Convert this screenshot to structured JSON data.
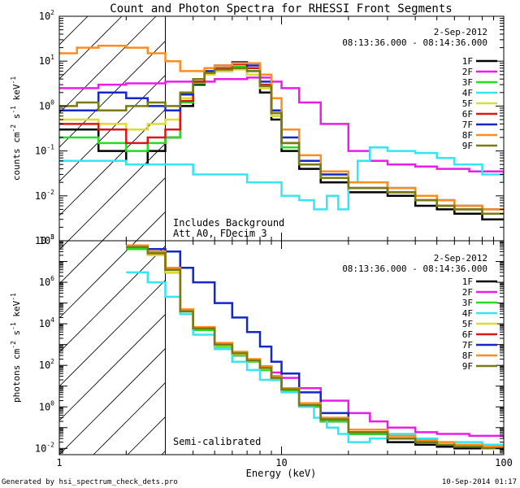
{
  "title": "Count and Photon Spectra for RHESSI Front Segments",
  "footer": {
    "generated_by": "Generated by hsi_spectrum_check_dets.pro",
    "timestamp": "10-Sep-2014 01:17"
  },
  "colors": {
    "1F": "#000000",
    "2F": "#e81ee8",
    "3F": "#22dd22",
    "4F": "#33e6f2",
    "5F": "#dcdc32",
    "6F": "#d81818",
    "7F": "#1428c8",
    "8F": "#ff8c1e",
    "9F": "#7a7a14"
  },
  "chart_data": [
    {
      "type": "line",
      "title": "Count and Photon Spectra for RHESSI Front Segments",
      "date": "2-Sep-2012",
      "time_range": "08:13:36.000 - 08:14:36.000",
      "annotations": [
        "Includes Background",
        "Att A0, FDecim 3"
      ],
      "xlabel": "",
      "ylabel": "counts cm-2 s-1 keV-1",
      "xscale": "log",
      "yscale": "log",
      "xlim": [
        1,
        100
      ],
      "ylim": [
        0.001,
        100
      ],
      "x_ticks": [
        1,
        10,
        100
      ],
      "x_tick_labels": [
        "",
        "",
        ""
      ],
      "y_ticks": [
        0.001,
        0.01,
        0.1,
        1,
        10,
        100
      ],
      "y_tick_labels": [
        "10^-3",
        "10^-2",
        "10^-1",
        "10^0",
        "10^1",
        "10^2"
      ],
      "ylabel_parts": [
        {
          "t": "counts cm"
        },
        {
          "t": "-2",
          "sup": true
        },
        {
          "t": " s"
        },
        {
          "t": "-1",
          "sup": true
        },
        {
          "t": " keV"
        },
        {
          "t": "-1",
          "sup": true
        }
      ],
      "series": [
        {
          "name": "1F",
          "x": [
            1,
            1.2,
            1.5,
            2,
            2.5,
            3,
            3.5,
            4,
            4.5,
            5,
            6,
            7,
            8,
            9,
            10,
            12,
            15,
            20,
            30,
            40,
            50,
            60,
            80,
            100
          ],
          "y": [
            0.3,
            0.3,
            0.1,
            0.05,
            0.1,
            0.2,
            1,
            3,
            5,
            6,
            7,
            5,
            2,
            0.5,
            0.1,
            0.04,
            0.02,
            0.012,
            0.01,
            0.006,
            0.005,
            0.004,
            0.003,
            0.003
          ]
        },
        {
          "name": "2F",
          "x": [
            1,
            1.5,
            2,
            3,
            5,
            7,
            9,
            10,
            12,
            15,
            20,
            25,
            30,
            40,
            50,
            70,
            100
          ],
          "y": [
            2.5,
            3,
            3.2,
            3.5,
            4,
            4.3,
            3.5,
            2.5,
            1.2,
            0.4,
            0.1,
            0.06,
            0.05,
            0.045,
            0.04,
            0.035,
            0.03
          ]
        },
        {
          "name": "3F",
          "x": [
            1,
            1.2,
            1.5,
            2,
            2.5,
            3,
            3.5,
            4,
            4.5,
            5,
            6,
            7,
            8,
            9,
            10,
            12,
            15,
            20,
            30,
            40,
            50,
            60,
            80,
            100
          ],
          "y": [
            0.2,
            0.2,
            0.15,
            0.1,
            0.15,
            0.2,
            1.2,
            3.2,
            5,
            6.5,
            7.5,
            6,
            2.5,
            0.6,
            0.12,
            0.05,
            0.025,
            0.015,
            0.012,
            0.008,
            0.006,
            0.005,
            0.004,
            0.004
          ]
        },
        {
          "name": "4F",
          "x": [
            1,
            1.5,
            2,
            2.5,
            3,
            4,
            5,
            6,
            7,
            8,
            10,
            12,
            14,
            16,
            18,
            20,
            22,
            25,
            30,
            40,
            50,
            60,
            80,
            100
          ],
          "y": [
            0.06,
            0.06,
            0.05,
            0.05,
            0.05,
            0.03,
            0.03,
            0.03,
            0.02,
            0.02,
            0.01,
            0.008,
            0.005,
            0.01,
            0.005,
            0.02,
            0.06,
            0.12,
            0.1,
            0.09,
            0.07,
            0.05,
            0.03,
            0.02
          ]
        },
        {
          "name": "5F",
          "x": [
            1,
            1.2,
            1.5,
            2,
            2.5,
            3,
            3.5,
            4,
            4.5,
            5,
            6,
            7,
            8,
            9,
            10,
            12,
            15,
            20,
            30,
            40,
            50,
            60,
            80,
            100
          ],
          "y": [
            0.5,
            0.5,
            0.4,
            0.3,
            0.4,
            0.5,
            1.5,
            3.5,
            5,
            6,
            6.5,
            5,
            2.5,
            0.6,
            0.15,
            0.05,
            0.03,
            0.02,
            0.012,
            0.008,
            0.006,
            0.005,
            0.004,
            0.004
          ]
        },
        {
          "name": "6F",
          "x": [
            1,
            1.2,
            1.5,
            2,
            2.5,
            3,
            3.5,
            4,
            4.5,
            5,
            6,
            7,
            8,
            9,
            10,
            12,
            15,
            20,
            30,
            40,
            50,
            60,
            80,
            100
          ],
          "y": [
            0.4,
            0.4,
            0.3,
            0.15,
            0.2,
            0.3,
            1.3,
            3.5,
            5.5,
            7,
            8.5,
            7,
            3,
            0.7,
            0.15,
            0.05,
            0.025,
            0.015,
            0.012,
            0.008,
            0.006,
            0.005,
            0.004,
            0.004
          ]
        },
        {
          "name": "7F",
          "x": [
            1,
            1.2,
            1.5,
            2,
            2.5,
            3,
            3.5,
            4,
            4.5,
            5,
            6,
            7,
            8,
            9,
            10,
            12,
            15,
            20,
            30,
            40,
            50,
            60,
            80,
            100
          ],
          "y": [
            0.8,
            0.8,
            2,
            1.5,
            1,
            0.8,
            1.8,
            4,
            6,
            8,
            9.5,
            8,
            3.5,
            0.8,
            0.2,
            0.06,
            0.03,
            0.02,
            0.015,
            0.01,
            0.008,
            0.006,
            0.005,
            0.005
          ]
        },
        {
          "name": "8F",
          "x": [
            1,
            1.2,
            1.5,
            2,
            2.5,
            3,
            3.5,
            4,
            4.5,
            5,
            6,
            7,
            8,
            9,
            10,
            12,
            15,
            20,
            30,
            40,
            50,
            60,
            80,
            100
          ],
          "y": [
            15,
            20,
            22,
            20,
            15,
            10,
            6,
            6,
            7,
            8,
            9,
            9,
            5,
            1.5,
            0.3,
            0.08,
            0.035,
            0.02,
            0.015,
            0.01,
            0.008,
            0.006,
            0.005,
            0.005
          ]
        },
        {
          "name": "9F",
          "x": [
            1,
            1.2,
            1.5,
            2,
            2.5,
            3,
            3.5,
            4,
            4.5,
            5,
            6,
            7,
            8,
            9,
            10,
            12,
            15,
            20,
            30,
            40,
            50,
            60,
            80,
            100
          ],
          "y": [
            1,
            1.2,
            0.8,
            1,
            1.2,
            1,
            2,
            4,
            5.5,
            6.5,
            7,
            6,
            2.8,
            0.7,
            0.15,
            0.05,
            0.025,
            0.015,
            0.012,
            0.008,
            0.006,
            0.005,
            0.004,
            0.004
          ]
        }
      ]
    },
    {
      "type": "line",
      "title": "",
      "date": "2-Sep-2012",
      "time_range": "08:13:36.000 - 08:14:36.000",
      "annotations": [
        "Semi-calibrated"
      ],
      "xlabel": "Energy (keV)",
      "ylabel": "photons cm-2 s-1 keV-1",
      "xscale": "log",
      "yscale": "log",
      "xlim": [
        1,
        100
      ],
      "ylim": [
        0.005,
        100000000
      ],
      "x_ticks": [
        1,
        10,
        100
      ],
      "x_tick_labels": [
        "1",
        "10",
        "100"
      ],
      "y_ticks": [
        0.01,
        1,
        100,
        10000,
        1000000,
        100000000
      ],
      "y_tick_labels": [
        "10^-2",
        "10^0",
        "10^2",
        "10^4",
        "10^6",
        "10^8"
      ],
      "ylabel_parts": [
        {
          "t": "photons cm"
        },
        {
          "t": "-2",
          "sup": true
        },
        {
          "t": " s"
        },
        {
          "t": "-1",
          "sup": true
        },
        {
          "t": " keV"
        },
        {
          "t": "-1",
          "sup": true
        }
      ],
      "series": [
        {
          "name": "1F",
          "x": [
            2,
            2.5,
            3,
            3.5,
            4,
            5,
            6,
            7,
            8,
            9,
            10,
            12,
            15,
            20,
            30,
            40,
            50,
            60,
            80,
            100
          ],
          "y": [
            40000000,
            20000000,
            3000000,
            30000,
            5000,
            800,
            300,
            150,
            60,
            20,
            6,
            1,
            0.2,
            0.05,
            0.02,
            0.015,
            0.012,
            0.01,
            0.01,
            0.008
          ]
        },
        {
          "name": "2F",
          "x": [
            2,
            2.5,
            3,
            3.5,
            4,
            5,
            6,
            7,
            8,
            9,
            10,
            12,
            15,
            20,
            25,
            30,
            40,
            50,
            70,
            100
          ],
          "y": [
            50000000,
            25000000,
            3000000,
            30000,
            5000,
            900,
            350,
            180,
            90,
            45,
            25,
            8,
            2,
            0.5,
            0.2,
            0.1,
            0.06,
            0.05,
            0.04,
            0.03
          ]
        },
        {
          "name": "3F",
          "x": [
            2,
            2.5,
            3,
            3.5,
            4,
            5,
            6,
            7,
            8,
            9,
            10,
            12,
            15,
            20,
            30,
            40,
            50,
            60,
            80,
            100
          ],
          "y": [
            40000000,
            20000000,
            3000000,
            30000,
            5000,
            800,
            300,
            150,
            60,
            20,
            6,
            1,
            0.2,
            0.05,
            0.03,
            0.02,
            0.015,
            0.012,
            0.01,
            0.008
          ]
        },
        {
          "name": "4F",
          "x": [
            2,
            2.5,
            3,
            3.5,
            4,
            5,
            6,
            7,
            8,
            10,
            12,
            14,
            16,
            18,
            20,
            22,
            25,
            30,
            40,
            50,
            60,
            80,
            100
          ],
          "y": [
            3000000,
            1000000,
            200000,
            30000,
            3000,
            600,
            150,
            60,
            20,
            5,
            1,
            0.3,
            0.1,
            0.05,
            0.02,
            0.02,
            0.03,
            0.05,
            0.03,
            0.02,
            0.02,
            0.015,
            0.01
          ]
        },
        {
          "name": "5F",
          "x": [
            2,
            2.5,
            3,
            3.5,
            4,
            5,
            6,
            7,
            8,
            9,
            10,
            12,
            15,
            20,
            30,
            40,
            50,
            60,
            80,
            100
          ],
          "y": [
            50000000,
            20000000,
            3000000,
            40000,
            6000,
            900,
            350,
            160,
            70,
            25,
            7,
            1.2,
            0.25,
            0.06,
            0.03,
            0.02,
            0.015,
            0.012,
            0.01,
            0.008
          ]
        },
        {
          "name": "6F",
          "x": [
            2,
            2.5,
            3,
            3.5,
            4,
            5,
            6,
            7,
            8,
            9,
            10,
            12,
            15,
            20,
            30,
            40,
            50,
            60,
            80,
            100
          ],
          "y": [
            50000000,
            25000000,
            4000000,
            40000,
            6000,
            1000,
            400,
            170,
            80,
            30,
            8,
            1.2,
            0.25,
            0.06,
            0.03,
            0.02,
            0.015,
            0.012,
            0.01,
            0.008
          ]
        },
        {
          "name": "7F",
          "x": [
            2,
            2.5,
            3,
            3.5,
            4,
            5,
            6,
            7,
            8,
            9,
            10,
            12,
            15,
            20,
            30,
            40,
            50,
            60,
            80,
            100
          ],
          "y": [
            60000000,
            40000000,
            30000000,
            5000000,
            1000000,
            100000,
            20000,
            4000,
            800,
            150,
            40,
            5,
            0.5,
            0.08,
            0.03,
            0.02,
            0.015,
            0.012,
            0.01,
            0.008
          ]
        },
        {
          "name": "8F",
          "x": [
            2,
            2.5,
            3,
            3.5,
            4,
            5,
            6,
            7,
            8,
            9,
            10,
            12,
            15,
            20,
            30,
            40,
            50,
            60,
            80,
            100
          ],
          "y": [
            60000000,
            30000000,
            5000000,
            50000,
            7000,
            1200,
            450,
            200,
            90,
            30,
            8,
            1.5,
            0.3,
            0.08,
            0.04,
            0.025,
            0.02,
            0.015,
            0.012,
            0.01
          ]
        },
        {
          "name": "9F",
          "x": [
            2,
            2.5,
            3,
            3.5,
            4,
            5,
            6,
            7,
            8,
            9,
            10,
            12,
            15,
            20,
            30,
            40,
            50,
            60,
            80,
            100
          ],
          "y": [
            50000000,
            25000000,
            4000000,
            40000,
            6000,
            1000,
            380,
            170,
            75,
            25,
            7,
            1.2,
            0.25,
            0.06,
            0.03,
            0.02,
            0.015,
            0.012,
            0.01,
            0.008
          ]
        }
      ]
    }
  ]
}
